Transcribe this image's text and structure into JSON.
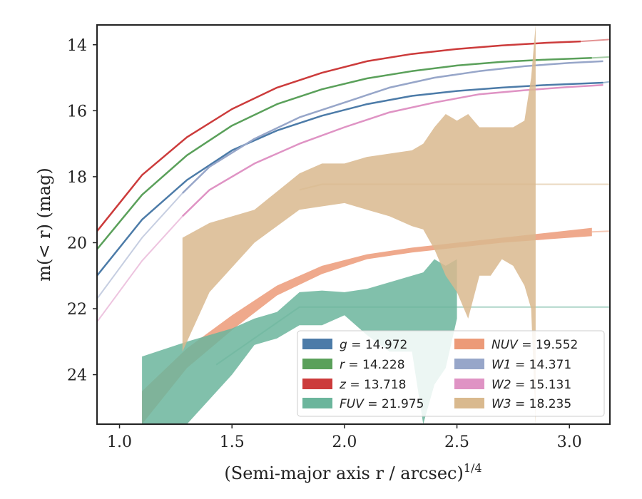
{
  "chart_data": {
    "type": "line",
    "xlabel": "(Semi-major axis r / arcsec)",
    "xlabel_sup": "1/4",
    "ylabel": "m(< r) (mag)",
    "xlim": [
      0.9,
      3.18
    ],
    "ylim": [
      25.5,
      13.4
    ],
    "y_inverted": true,
    "xticks": [
      1.0,
      1.5,
      2.0,
      2.5,
      3.0
    ],
    "xtick_labels": [
      "1.0",
      "1.5",
      "2.0",
      "2.5",
      "3.0"
    ],
    "yticks": [
      14,
      16,
      18,
      20,
      22,
      24
    ],
    "ytick_labels": [
      "14",
      "16",
      "18",
      "20",
      "22",
      "24"
    ],
    "grid": false,
    "legend_placement": "lower-right",
    "legend": [
      {
        "band": "g",
        "value": "14.972",
        "color": "#4c7ba8"
      },
      {
        "band": "r",
        "value": "14.228",
        "color": "#5aa05a"
      },
      {
        "band": "z",
        "value": "13.718",
        "color": "#cc3b3b"
      },
      {
        "band": "FUV",
        "value": "21.975",
        "color": "#6bb59c"
      },
      {
        "band": "NUV",
        "value": "19.552",
        "color": "#ec9a78"
      },
      {
        "band": "W1",
        "value": "14.371",
        "color": "#97a6c9"
      },
      {
        "band": "W2",
        "value": "15.131",
        "color": "#df93c4"
      },
      {
        "band": "W3",
        "value": "18.235",
        "color": "#d9b98e"
      }
    ],
    "series": [
      {
        "band": "z",
        "color": "#cc3b3b",
        "kind": "line",
        "x": [
          0.9,
          1.1,
          1.3,
          1.5,
          1.7,
          1.9,
          2.1,
          2.3,
          2.5,
          2.7,
          2.9,
          3.05
        ],
        "y": [
          19.65,
          17.95,
          16.8,
          15.95,
          15.3,
          14.85,
          14.5,
          14.28,
          14.13,
          14.02,
          13.94,
          13.9
        ],
        "model_x": [
          3.05,
          3.18
        ],
        "model_y": [
          13.9,
          13.84
        ]
      },
      {
        "band": "r",
        "color": "#5aa05a",
        "kind": "line",
        "x": [
          0.9,
          1.1,
          1.3,
          1.5,
          1.7,
          1.9,
          2.1,
          2.3,
          2.5,
          2.7,
          2.9,
          3.1
        ],
        "y": [
          20.2,
          18.55,
          17.35,
          16.45,
          15.8,
          15.35,
          15.02,
          14.8,
          14.63,
          14.52,
          14.45,
          14.4
        ],
        "model_x": [
          3.1,
          3.18
        ],
        "model_y": [
          14.4,
          14.37
        ]
      },
      {
        "band": "g",
        "color": "#4c7ba8",
        "kind": "line",
        "x": [
          0.9,
          1.1,
          1.3,
          1.5,
          1.7,
          1.9,
          2.1,
          2.3,
          2.5,
          2.7,
          2.9,
          3.15
        ],
        "y": [
          21.0,
          19.3,
          18.1,
          17.2,
          16.6,
          16.15,
          15.8,
          15.55,
          15.4,
          15.3,
          15.22,
          15.15
        ],
        "model_x": [
          3.15,
          3.18
        ],
        "model_y": [
          15.15,
          15.12
        ]
      },
      {
        "band": "W1",
        "color": "#97a6c9",
        "kind": "line",
        "x": [
          1.28,
          1.4,
          1.6,
          1.8,
          2.0,
          2.2,
          2.4,
          2.6,
          2.8,
          3.0,
          3.15
        ],
        "y": [
          18.5,
          17.7,
          16.85,
          16.2,
          15.75,
          15.3,
          15.0,
          14.8,
          14.65,
          14.55,
          14.5
        ],
        "model_x": [
          0.9,
          1.1,
          1.28
        ],
        "model_y": [
          21.7,
          19.85,
          18.5
        ]
      },
      {
        "band": "W2",
        "color": "#df93c4",
        "kind": "line",
        "x": [
          1.28,
          1.4,
          1.6,
          1.8,
          2.0,
          2.2,
          2.4,
          2.6,
          2.8,
          3.0,
          3.15
        ],
        "y": [
          19.2,
          18.4,
          17.6,
          17.0,
          16.5,
          16.05,
          15.75,
          15.5,
          15.38,
          15.28,
          15.22
        ],
        "model_x": [
          0.9,
          1.1,
          1.28
        ],
        "model_y": [
          22.4,
          20.55,
          19.2
        ]
      },
      {
        "band": "NUV",
        "color": "#ec9a78",
        "kind": "band",
        "x": [
          1.1,
          1.3,
          1.5,
          1.7,
          1.9,
          2.1,
          2.3,
          2.5,
          2.7,
          2.9,
          3.1
        ],
        "y_lo": [
          24.5,
          23.2,
          22.2,
          21.3,
          20.7,
          20.35,
          20.15,
          20.0,
          19.85,
          19.7,
          19.55
        ],
        "y_hi": [
          25.5,
          23.8,
          22.65,
          21.6,
          20.95,
          20.5,
          20.3,
          20.15,
          20.0,
          19.9,
          19.8
        ],
        "model_x": [
          3.1,
          3.18
        ],
        "model_y": [
          19.67,
          19.65
        ]
      },
      {
        "band": "FUV",
        "color": "#6bb59c",
        "kind": "band",
        "x": [
          1.1,
          1.3,
          1.5,
          1.6,
          1.7,
          1.8,
          1.9,
          2.0,
          2.1,
          2.2,
          2.3,
          2.35,
          2.4,
          2.45,
          2.5
        ],
        "y_lo": [
          23.45,
          23.0,
          22.6,
          22.3,
          22.1,
          21.5,
          21.45,
          21.5,
          21.4,
          21.2,
          21.0,
          20.9,
          20.5,
          20.7,
          20.5
        ],
        "y_hi": [
          25.5,
          25.5,
          24.0,
          23.1,
          22.9,
          22.5,
          22.5,
          22.2,
          22.8,
          23.3,
          23.3,
          25.5,
          24.3,
          23.8,
          22.3
        ],
        "model_x": [
          1.43,
          1.8,
          3.18
        ],
        "model_y": [
          23.7,
          21.95,
          21.95
        ]
      },
      {
        "band": "W3",
        "color": "#d9b98e",
        "kind": "band",
        "x": [
          1.28,
          1.4,
          1.6,
          1.8,
          1.9,
          2.0,
          2.1,
          2.2,
          2.3,
          2.35,
          2.4,
          2.45,
          2.5,
          2.55,
          2.6,
          2.65,
          2.7,
          2.75,
          2.8,
          2.83,
          2.85
        ],
        "y_lo": [
          19.85,
          19.4,
          19.0,
          17.9,
          17.6,
          17.6,
          17.4,
          17.3,
          17.2,
          17.0,
          16.5,
          16.1,
          16.3,
          16.1,
          16.5,
          16.5,
          16.5,
          16.5,
          16.3,
          15.0,
          13.4
        ],
        "y_hi": [
          23.3,
          21.5,
          20.0,
          19.0,
          18.9,
          18.8,
          19.0,
          19.2,
          19.5,
          19.6,
          20.2,
          21.0,
          21.5,
          22.3,
          21.0,
          21.0,
          20.5,
          20.7,
          21.3,
          22.0,
          25.5
        ],
        "model_x": [
          1.8,
          1.9,
          3.18
        ],
        "model_y": [
          18.4,
          18.23,
          18.23
        ]
      }
    ]
  }
}
